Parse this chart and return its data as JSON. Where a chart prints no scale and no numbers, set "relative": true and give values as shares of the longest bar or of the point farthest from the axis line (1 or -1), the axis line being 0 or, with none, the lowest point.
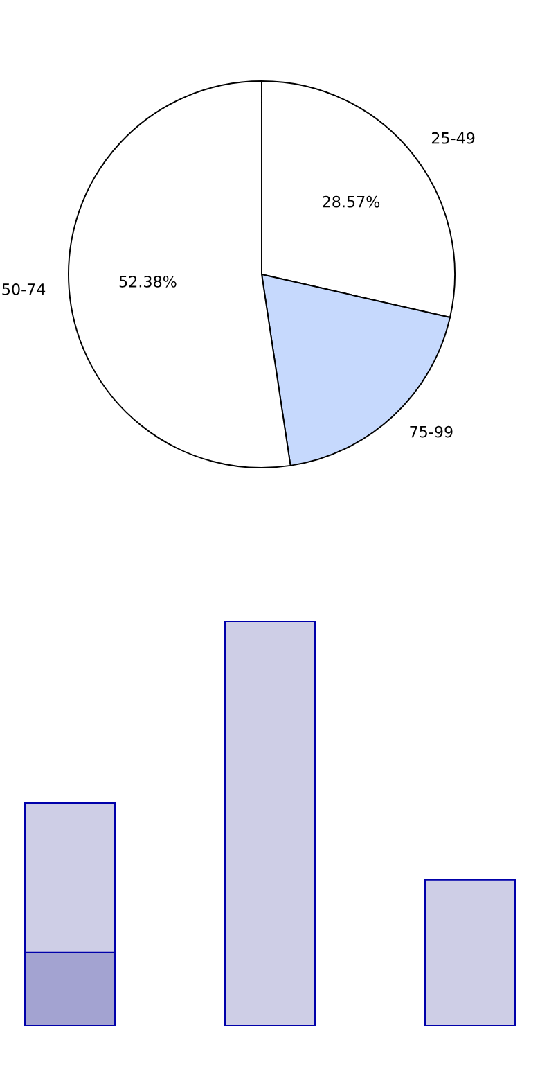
{
  "chart_data": [
    {
      "type": "pie",
      "categories": [
        "25-49",
        "75-99",
        "50-74"
      ],
      "values": [
        28.57,
        19.05,
        52.38
      ],
      "value_labels": [
        "28.57%",
        null,
        "52.38%"
      ],
      "colors": [
        "#ffffff",
        "#c6d9fd",
        "#ffffff"
      ]
    },
    {
      "type": "bar",
      "relative": true,
      "stacked": true,
      "categories": [
        null,
        null,
        null
      ],
      "series": [
        {
          "color": "#a3a3d1",
          "values": [
            0.18,
            0,
            0
          ]
        },
        {
          "color": "#cecee6",
          "values": [
            0.37,
            1,
            0.36
          ]
        }
      ]
    }
  ]
}
